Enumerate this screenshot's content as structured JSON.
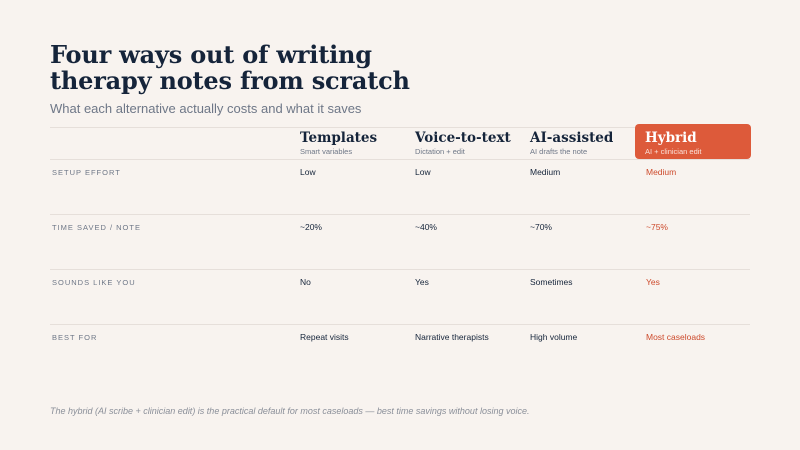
{
  "title": "Four ways out of writing therapy notes from scratch",
  "subtitle": "What each alternative actually costs and what it saves",
  "columns": [
    {
      "name": "Templates",
      "sub": "Smart variables"
    },
    {
      "name": "Voice-to-text",
      "sub": "Dictation + edit"
    },
    {
      "name": "AI-assisted",
      "sub": "AI drafts the note"
    },
    {
      "name": "Hybrid",
      "sub": "AI + clinician edit",
      "highlighted": true
    }
  ],
  "rows": [
    {
      "label": "SETUP EFFORT",
      "cells": [
        "Low",
        "Low",
        "Medium",
        "Medium"
      ]
    },
    {
      "label": "TIME SAVED / NOTE",
      "cells": [
        "~20%",
        "~40%",
        "~70%",
        "~75%"
      ]
    },
    {
      "label": "SOUNDS LIKE YOU",
      "cells": [
        "No",
        "Yes",
        "Sometimes",
        "Yes"
      ]
    },
    {
      "label": "BEST FOR",
      "cells": [
        "Repeat visits",
        "Narrative therapists",
        "High volume",
        "Most caseloads"
      ]
    }
  ],
  "footnote": "The hybrid (AI scribe + clinician edit) is the practical default for most caseloads — best time savings without losing voice.",
  "colors": {
    "background": "#f8f3ef",
    "ink": "#15243a",
    "muted": "#6e7787",
    "accent": "#dd5a3a",
    "accent_text": "#cd4a2c",
    "rule": "#e6dfda"
  }
}
